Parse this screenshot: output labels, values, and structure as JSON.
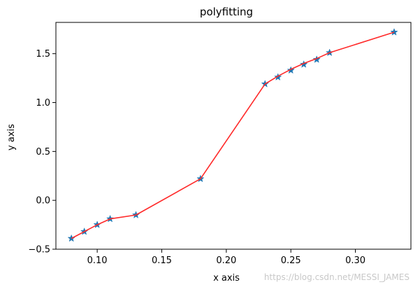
{
  "chart_data": {
    "type": "line",
    "title": "polyfitting",
    "xlabel": "x axis",
    "ylabel": "y axis",
    "xlim": [
      0.068,
      0.343
    ],
    "ylim": [
      -0.5,
      1.82
    ],
    "xticks": [
      0.1,
      0.15,
      0.2,
      0.25,
      0.3
    ],
    "xtick_labels": [
      "0.10",
      "0.15",
      "0.20",
      "0.25",
      "0.30"
    ],
    "yticks": [
      -0.5,
      0.0,
      0.5,
      1.0,
      1.5
    ],
    "ytick_labels": [
      "−0.5",
      "0.0",
      "0.5",
      "1.0",
      "1.5"
    ],
    "grid": false,
    "series": [
      {
        "kind": "scatter",
        "marker": "star",
        "color": "#1f77b4",
        "x": [
          0.08,
          0.09,
          0.1,
          0.11,
          0.13,
          0.18,
          0.23,
          0.24,
          0.25,
          0.26,
          0.27,
          0.28,
          0.33
        ],
        "y": [
          -0.39,
          -0.32,
          -0.25,
          -0.19,
          -0.15,
          0.22,
          1.19,
          1.26,
          1.33,
          1.39,
          1.44,
          1.51,
          1.72
        ]
      },
      {
        "kind": "line",
        "color": "#ff2a2a",
        "x": [
          0.08,
          0.09,
          0.1,
          0.11,
          0.13,
          0.18,
          0.23,
          0.24,
          0.25,
          0.26,
          0.27,
          0.28,
          0.33
        ],
        "y": [
          -0.39,
          -0.32,
          -0.25,
          -0.19,
          -0.15,
          0.22,
          1.19,
          1.27,
          1.34,
          1.4,
          1.45,
          1.51,
          1.72
        ]
      }
    ]
  },
  "watermark": "https://blog.csdn.net/MESSI_JAMES"
}
